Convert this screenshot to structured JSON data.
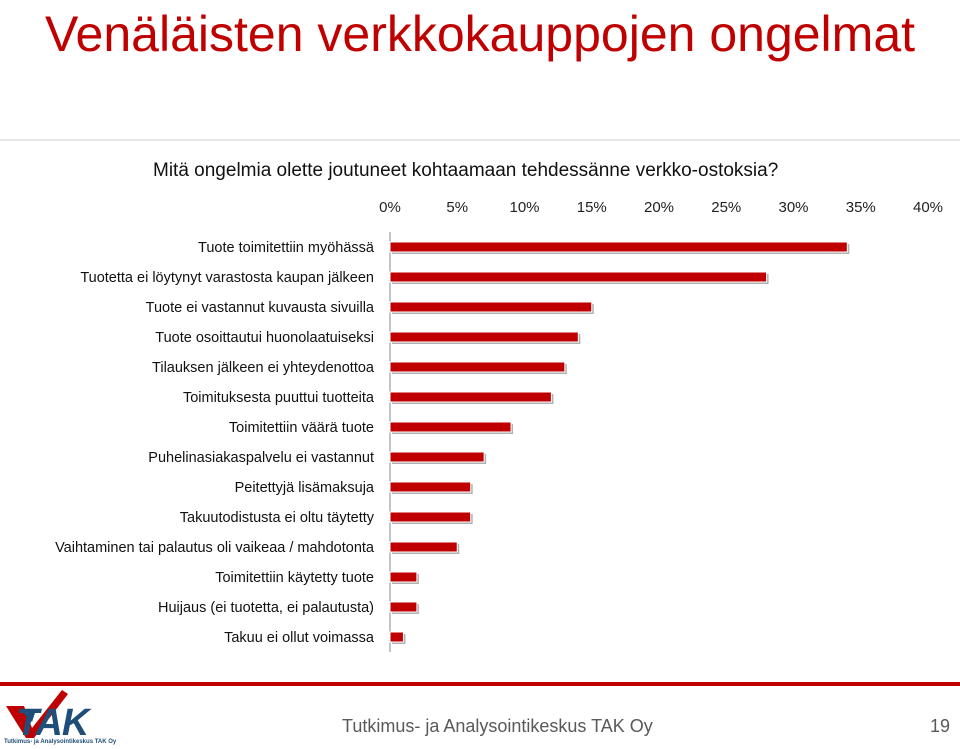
{
  "slide": {
    "title": "Venäläisten verkkokauppojen ongelmat",
    "footer_org": "Tutkimus- ja Analysointikeskus TAK Oy",
    "page_number": "19",
    "logo_text": "TAK",
    "logo_subtext": "Tutkimus- ja Analysointikeskus TAK Oy"
  },
  "chart_data": {
    "type": "bar",
    "orientation": "horizontal",
    "title": "Mitä ongelmia olette joutuneet kohtaamaan tehdessänne verkko-ostoksia?",
    "xlabel": "",
    "ylabel": "",
    "xlim": [
      0,
      40
    ],
    "x_ticks": [
      "0%",
      "5%",
      "10%",
      "15%",
      "20%",
      "25%",
      "30%",
      "35%",
      "40%"
    ],
    "axis_position": "top",
    "grid": false,
    "bar_color": "#c00000",
    "categories": [
      "Tuote toimitettiin myöhässä",
      "Tuotetta ei löytynyt varastosta kaupan jälkeen",
      "Tuote ei vastannut kuvausta sivuilla",
      "Tuote osoittautui huonolaatuiseksi",
      "Tilauksen jälkeen ei yhteydenottoa",
      "Toimituksesta puuttui tuotteita",
      "Toimitettiin väärä tuote",
      "Puhelinasiakaspalvelu ei vastannut",
      "Peitettyjä lisämaksuja",
      "Takuutodistusta ei oltu täytetty",
      "Vaihtaminen tai palautus oli vaikeaa / mahdotonta",
      "Toimitettiin käytetty tuote",
      "Huijaus (ei tuotetta, ei palautusta)",
      "Takuu ei ollut voimassa"
    ],
    "values": [
      34,
      28,
      15,
      14,
      13,
      12,
      9,
      7,
      6,
      6,
      5,
      2,
      2,
      1
    ]
  }
}
